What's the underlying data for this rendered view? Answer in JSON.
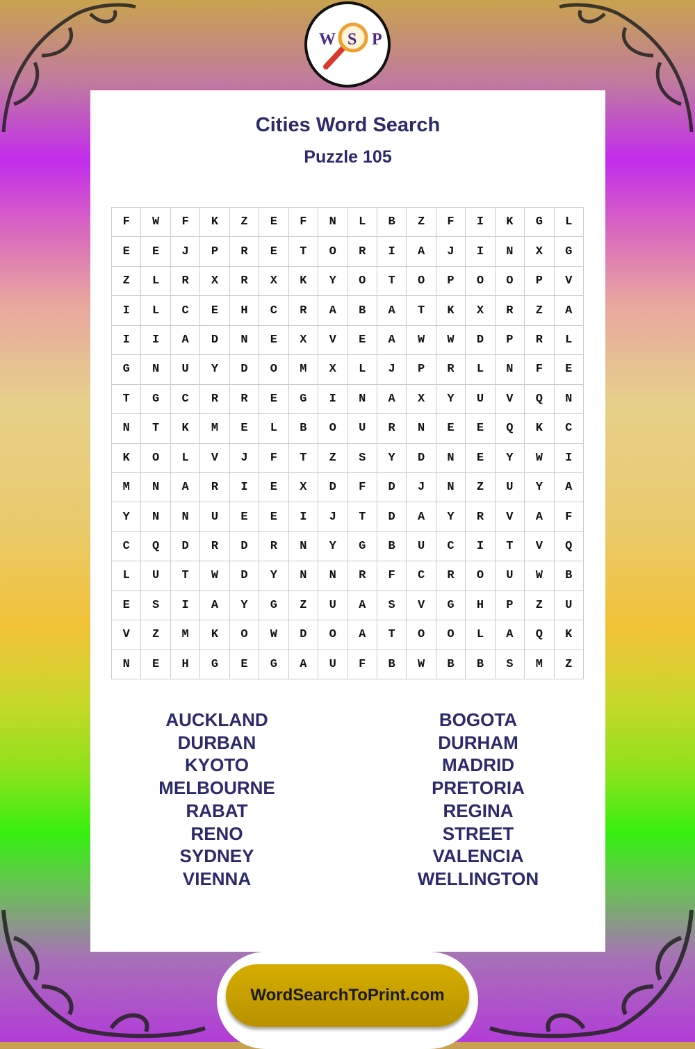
{
  "logo": {
    "letters": [
      "W",
      "S",
      "P"
    ]
  },
  "title": "Cities Word Search",
  "subtitle": "Puzzle 105",
  "grid": [
    "FWFKZEFNLBZFIKGL",
    "EEJPRETORIAJINXG",
    "ZLRXRXKYOTOPOOPV",
    "ILCEHCRABATKXRZA",
    "IIADNEXVEAWWDPRL",
    "GNUYDOMXLJPRLNFE",
    "TGCRREGINAXYUVQN",
    "NTKMELBOURNEEQKC",
    "KOLVJFTZSYDNEYWI",
    "MNARIEXDFDJNZUYA",
    "YNNUEEIJTDAYRVAF",
    "CQDRDRNYGBUCITVQ",
    "LUTWDYNNRFCROUWB",
    "ESIAYGZUASVGHPZU",
    "VZMKOWDOATOOLAQK",
    "NEHGEGAUFBWBBSMZ"
  ],
  "words_left": [
    "AUCKLAND",
    "DURBAN",
    "KYOTO",
    "MELBOURNE",
    "RABAT",
    "RENO",
    "SYDNEY",
    "VIENNA"
  ],
  "words_right": [
    "BOGOTA",
    "DURHAM",
    "MADRID",
    "PRETORIA",
    "REGINA",
    "STREET",
    "VALENCIA",
    "WELLINGTON"
  ],
  "footer": "WordSearchToPrint.com",
  "colors": {
    "text": "#2b2a6b",
    "footer": "#c8a000"
  }
}
